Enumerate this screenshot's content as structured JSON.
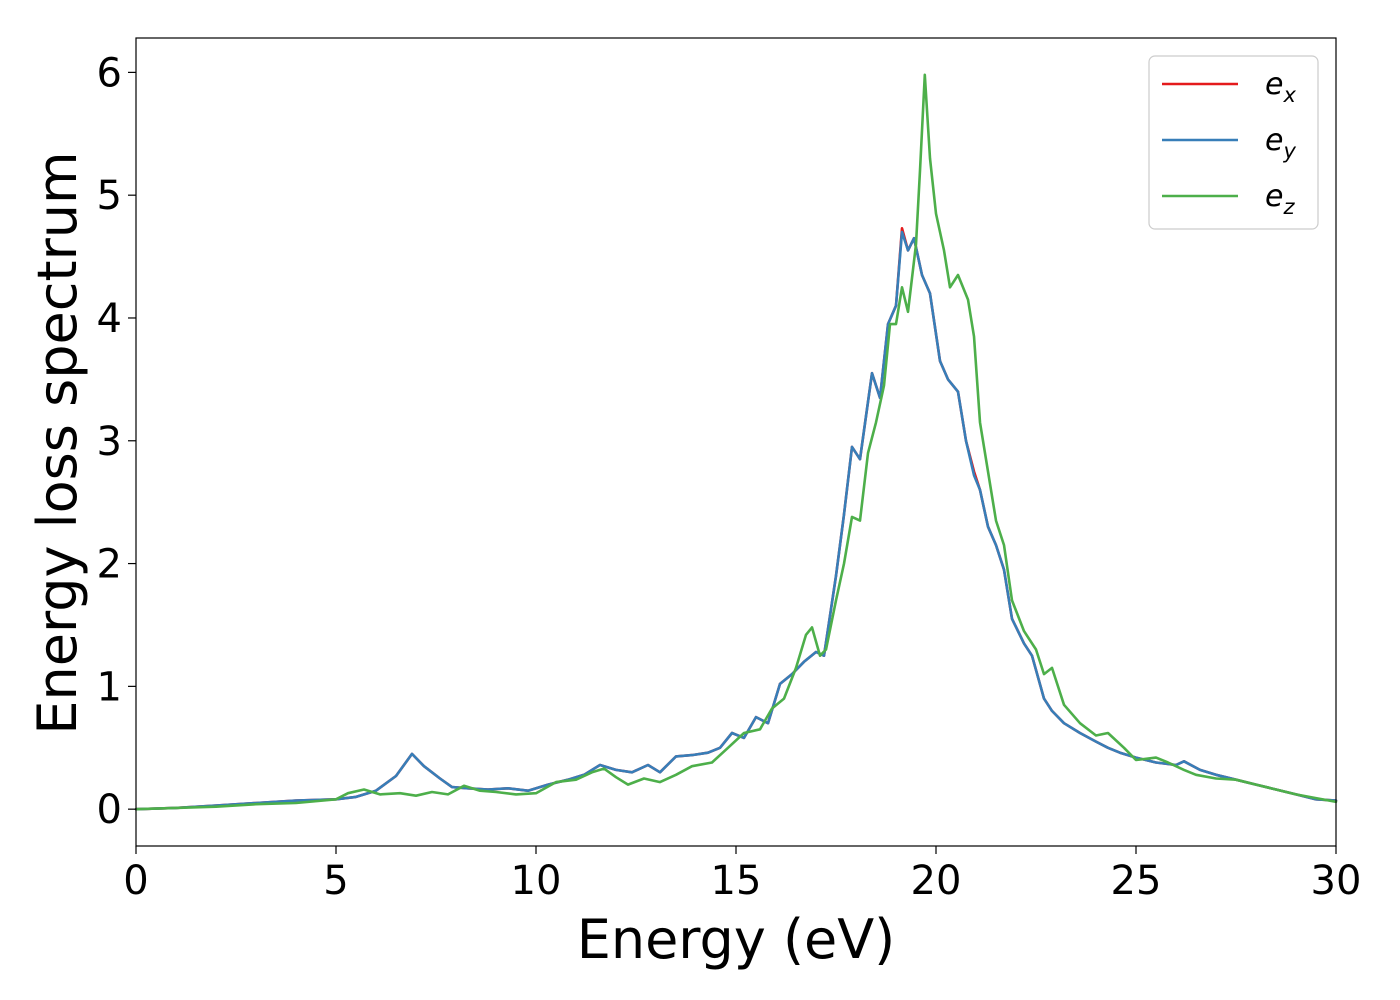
{
  "chart_data": {
    "type": "line",
    "title": "",
    "xlabel": "Energy (eV)",
    "ylabel": "Energy loss spectrum",
    "xlim": [
      0,
      30
    ],
    "ylim": [
      -0.3,
      6.28
    ],
    "xticks": [
      0,
      5,
      10,
      15,
      20,
      25,
      30
    ],
    "yticks": [
      0,
      1,
      2,
      3,
      4,
      5,
      6
    ],
    "grid": false,
    "legend_position": "top-right",
    "series": [
      {
        "name": "e_x",
        "legend": {
          "base": "e",
          "sub": "x"
        },
        "color": "#e41a1c",
        "points": [
          [
            0,
            0
          ],
          [
            1,
            0.01
          ],
          [
            2,
            0.03
          ],
          [
            3,
            0.05
          ],
          [
            4,
            0.07
          ],
          [
            5,
            0.08
          ],
          [
            5.5,
            0.1
          ],
          [
            6,
            0.15
          ],
          [
            6.5,
            0.27
          ],
          [
            6.9,
            0.45
          ],
          [
            7.2,
            0.35
          ],
          [
            7.6,
            0.25
          ],
          [
            7.9,
            0.18
          ],
          [
            8.3,
            0.17
          ],
          [
            8.8,
            0.16
          ],
          [
            9.3,
            0.17
          ],
          [
            9.8,
            0.15
          ],
          [
            10.3,
            0.2
          ],
          [
            10.8,
            0.24
          ],
          [
            11.2,
            0.28
          ],
          [
            11.6,
            0.36
          ],
          [
            12.0,
            0.32
          ],
          [
            12.4,
            0.3
          ],
          [
            12.8,
            0.36
          ],
          [
            13.1,
            0.3
          ],
          [
            13.5,
            0.43
          ],
          [
            13.9,
            0.44
          ],
          [
            14.3,
            0.46
          ],
          [
            14.6,
            0.5
          ],
          [
            14.9,
            0.62
          ],
          [
            15.2,
            0.58
          ],
          [
            15.5,
            0.75
          ],
          [
            15.8,
            0.7
          ],
          [
            16.1,
            1.02
          ],
          [
            16.4,
            1.1
          ],
          [
            16.7,
            1.2
          ],
          [
            17.0,
            1.28
          ],
          [
            17.2,
            1.25
          ],
          [
            17.5,
            1.9
          ],
          [
            17.7,
            2.4
          ],
          [
            17.9,
            2.95
          ],
          [
            18.1,
            2.85
          ],
          [
            18.4,
            3.55
          ],
          [
            18.6,
            3.35
          ],
          [
            18.8,
            3.95
          ],
          [
            19.0,
            4.1
          ],
          [
            19.15,
            4.73
          ],
          [
            19.3,
            4.55
          ],
          [
            19.45,
            4.65
          ],
          [
            19.65,
            4.35
          ],
          [
            19.85,
            4.2
          ],
          [
            20.1,
            3.65
          ],
          [
            20.3,
            3.5
          ],
          [
            20.55,
            3.4
          ],
          [
            20.75,
            3.0
          ],
          [
            20.95,
            2.75
          ],
          [
            21.1,
            2.6
          ],
          [
            21.3,
            2.3
          ],
          [
            21.5,
            2.15
          ],
          [
            21.7,
            1.95
          ],
          [
            21.9,
            1.55
          ],
          [
            22.2,
            1.35
          ],
          [
            22.4,
            1.25
          ],
          [
            22.7,
            0.9
          ],
          [
            22.9,
            0.8
          ],
          [
            23.2,
            0.7
          ],
          [
            23.6,
            0.62
          ],
          [
            24.0,
            0.55
          ],
          [
            24.3,
            0.5
          ],
          [
            24.6,
            0.46
          ],
          [
            25.0,
            0.42
          ],
          [
            25.5,
            0.38
          ],
          [
            26.0,
            0.36
          ],
          [
            26.2,
            0.39
          ],
          [
            26.6,
            0.32
          ],
          [
            27.0,
            0.28
          ],
          [
            27.5,
            0.24
          ],
          [
            28.0,
            0.2
          ],
          [
            28.5,
            0.16
          ],
          [
            29.0,
            0.12
          ],
          [
            29.5,
            0.08
          ],
          [
            30,
            0.07
          ]
        ]
      },
      {
        "name": "e_y",
        "legend": {
          "base": "e",
          "sub": "y"
        },
        "color": "#377eb8",
        "points": [
          [
            0,
            0
          ],
          [
            1,
            0.01
          ],
          [
            2,
            0.03
          ],
          [
            3,
            0.05
          ],
          [
            4,
            0.07
          ],
          [
            5,
            0.08
          ],
          [
            5.5,
            0.1
          ],
          [
            6,
            0.15
          ],
          [
            6.5,
            0.27
          ],
          [
            6.9,
            0.45
          ],
          [
            7.2,
            0.35
          ],
          [
            7.6,
            0.25
          ],
          [
            7.9,
            0.18
          ],
          [
            8.3,
            0.17
          ],
          [
            8.8,
            0.16
          ],
          [
            9.3,
            0.17
          ],
          [
            9.8,
            0.15
          ],
          [
            10.3,
            0.2
          ],
          [
            10.8,
            0.24
          ],
          [
            11.2,
            0.28
          ],
          [
            11.6,
            0.36
          ],
          [
            12.0,
            0.32
          ],
          [
            12.4,
            0.3
          ],
          [
            12.8,
            0.36
          ],
          [
            13.1,
            0.3
          ],
          [
            13.5,
            0.43
          ],
          [
            13.9,
            0.44
          ],
          [
            14.3,
            0.46
          ],
          [
            14.6,
            0.5
          ],
          [
            14.9,
            0.62
          ],
          [
            15.2,
            0.58
          ],
          [
            15.5,
            0.75
          ],
          [
            15.8,
            0.7
          ],
          [
            16.1,
            1.02
          ],
          [
            16.4,
            1.1
          ],
          [
            16.7,
            1.2
          ],
          [
            17.0,
            1.28
          ],
          [
            17.2,
            1.25
          ],
          [
            17.5,
            1.9
          ],
          [
            17.7,
            2.4
          ],
          [
            17.9,
            2.95
          ],
          [
            18.1,
            2.85
          ],
          [
            18.4,
            3.55
          ],
          [
            18.6,
            3.35
          ],
          [
            18.8,
            3.95
          ],
          [
            19.0,
            4.1
          ],
          [
            19.15,
            4.7
          ],
          [
            19.3,
            4.55
          ],
          [
            19.45,
            4.65
          ],
          [
            19.65,
            4.35
          ],
          [
            19.85,
            4.2
          ],
          [
            20.1,
            3.65
          ],
          [
            20.3,
            3.5
          ],
          [
            20.55,
            3.4
          ],
          [
            20.75,
            3.0
          ],
          [
            20.95,
            2.72
          ],
          [
            21.1,
            2.6
          ],
          [
            21.3,
            2.3
          ],
          [
            21.5,
            2.15
          ],
          [
            21.7,
            1.95
          ],
          [
            21.9,
            1.55
          ],
          [
            22.2,
            1.35
          ],
          [
            22.4,
            1.25
          ],
          [
            22.7,
            0.9
          ],
          [
            22.9,
            0.8
          ],
          [
            23.2,
            0.7
          ],
          [
            23.6,
            0.62
          ],
          [
            24.0,
            0.55
          ],
          [
            24.3,
            0.5
          ],
          [
            24.6,
            0.46
          ],
          [
            25.0,
            0.42
          ],
          [
            25.5,
            0.38
          ],
          [
            26.0,
            0.36
          ],
          [
            26.2,
            0.39
          ],
          [
            26.6,
            0.32
          ],
          [
            27.0,
            0.28
          ],
          [
            27.5,
            0.24
          ],
          [
            28.0,
            0.2
          ],
          [
            28.5,
            0.16
          ],
          [
            29.0,
            0.12
          ],
          [
            29.5,
            0.08
          ],
          [
            30,
            0.07
          ]
        ]
      },
      {
        "name": "e_z",
        "legend": {
          "base": "e",
          "sub": "z"
        },
        "color": "#4daf4a",
        "points": [
          [
            0,
            0
          ],
          [
            1,
            0.01
          ],
          [
            2,
            0.02
          ],
          [
            3,
            0.04
          ],
          [
            4,
            0.05
          ],
          [
            5,
            0.08
          ],
          [
            5.3,
            0.13
          ],
          [
            5.7,
            0.16
          ],
          [
            6.1,
            0.12
          ],
          [
            6.6,
            0.13
          ],
          [
            7.0,
            0.11
          ],
          [
            7.4,
            0.14
          ],
          [
            7.8,
            0.12
          ],
          [
            8.2,
            0.19
          ],
          [
            8.6,
            0.15
          ],
          [
            9.0,
            0.14
          ],
          [
            9.5,
            0.12
          ],
          [
            10.0,
            0.13
          ],
          [
            10.5,
            0.22
          ],
          [
            11.0,
            0.24
          ],
          [
            11.4,
            0.3
          ],
          [
            11.7,
            0.33
          ],
          [
            12.0,
            0.26
          ],
          [
            12.3,
            0.2
          ],
          [
            12.7,
            0.25
          ],
          [
            13.1,
            0.22
          ],
          [
            13.5,
            0.28
          ],
          [
            13.9,
            0.35
          ],
          [
            14.4,
            0.38
          ],
          [
            14.8,
            0.5
          ],
          [
            15.2,
            0.62
          ],
          [
            15.6,
            0.65
          ],
          [
            15.9,
            0.82
          ],
          [
            16.2,
            0.9
          ],
          [
            16.5,
            1.15
          ],
          [
            16.75,
            1.42
          ],
          [
            16.9,
            1.48
          ],
          [
            17.1,
            1.25
          ],
          [
            17.25,
            1.3
          ],
          [
            17.5,
            1.7
          ],
          [
            17.7,
            2.0
          ],
          [
            17.9,
            2.38
          ],
          [
            18.1,
            2.35
          ],
          [
            18.3,
            2.9
          ],
          [
            18.5,
            3.15
          ],
          [
            18.7,
            3.45
          ],
          [
            18.85,
            3.95
          ],
          [
            19.0,
            3.95
          ],
          [
            19.15,
            4.25
          ],
          [
            19.3,
            4.05
          ],
          [
            19.5,
            4.6
          ],
          [
            19.6,
            5.2
          ],
          [
            19.72,
            5.98
          ],
          [
            19.85,
            5.3
          ],
          [
            20.0,
            4.85
          ],
          [
            20.2,
            4.55
          ],
          [
            20.35,
            4.25
          ],
          [
            20.55,
            4.35
          ],
          [
            20.8,
            4.15
          ],
          [
            20.95,
            3.85
          ],
          [
            21.1,
            3.15
          ],
          [
            21.3,
            2.75
          ],
          [
            21.5,
            2.35
          ],
          [
            21.7,
            2.15
          ],
          [
            21.9,
            1.7
          ],
          [
            22.2,
            1.45
          ],
          [
            22.5,
            1.3
          ],
          [
            22.7,
            1.1
          ],
          [
            22.9,
            1.15
          ],
          [
            23.2,
            0.85
          ],
          [
            23.6,
            0.7
          ],
          [
            24.0,
            0.6
          ],
          [
            24.3,
            0.62
          ],
          [
            24.7,
            0.5
          ],
          [
            25.0,
            0.4
          ],
          [
            25.5,
            0.42
          ],
          [
            25.8,
            0.38
          ],
          [
            26.2,
            0.32
          ],
          [
            26.5,
            0.28
          ],
          [
            27.0,
            0.25
          ],
          [
            27.5,
            0.24
          ],
          [
            28.0,
            0.2
          ],
          [
            28.5,
            0.16
          ],
          [
            29.0,
            0.12
          ],
          [
            29.5,
            0.09
          ],
          [
            30,
            0.06
          ]
        ]
      }
    ]
  }
}
